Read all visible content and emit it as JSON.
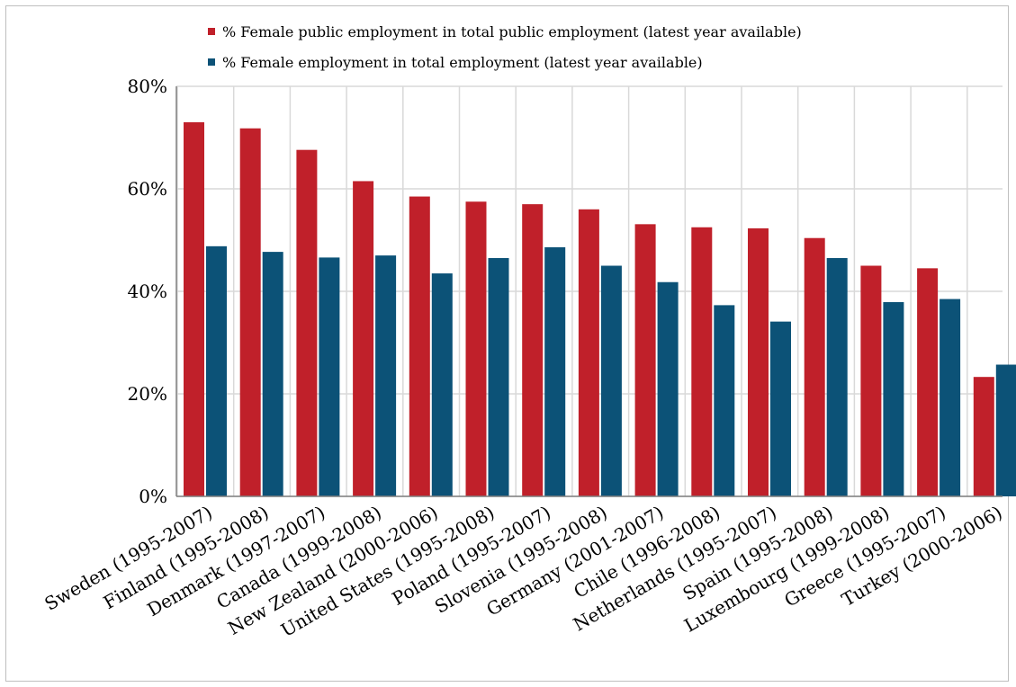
{
  "chart_data": {
    "type": "bar",
    "title": "",
    "xlabel": "",
    "ylabel": "",
    "ylim": [
      0,
      80
    ],
    "y_tick_labels": [
      "0%",
      "20%",
      "40%",
      "60%",
      "80%"
    ],
    "y_ticks": [
      0,
      20,
      40,
      60,
      80
    ],
    "grid": true,
    "legend_position": "top",
    "categories": [
      "Sweden (1995-2007)",
      "Finland (1995-2008)",
      "Denmark (1997-2007)",
      "Canada (1999-2008)",
      "New Zealand (2000-2006)",
      "United States (1995-2008)",
      "Poland (1995-2007)",
      "Slovenia (1995-2008)",
      "Germany (2001-2007)",
      "Chile (1996-2008)",
      "Netherlands (1995-2007)",
      "Spain (1995-2008)",
      "Luxembourg (1999-2008)",
      "Greece (1995-2007)",
      "Turkey (2000-2006)"
    ],
    "series": [
      {
        "name": "% Female public employment in total public employment (latest year available)",
        "color": "#c0202a",
        "values": [
          73.0,
          71.8,
          67.6,
          61.5,
          58.5,
          57.5,
          57.0,
          56.0,
          53.1,
          52.5,
          52.3,
          50.4,
          45.0,
          44.5,
          23.3
        ]
      },
      {
        "name": "% Female employment in total employment (latest year available)",
        "color": "#0c5277",
        "values": [
          48.8,
          47.7,
          46.6,
          47.0,
          43.5,
          46.5,
          48.6,
          45.0,
          41.8,
          37.3,
          34.1,
          46.5,
          37.9,
          38.5,
          25.7
        ]
      }
    ]
  }
}
